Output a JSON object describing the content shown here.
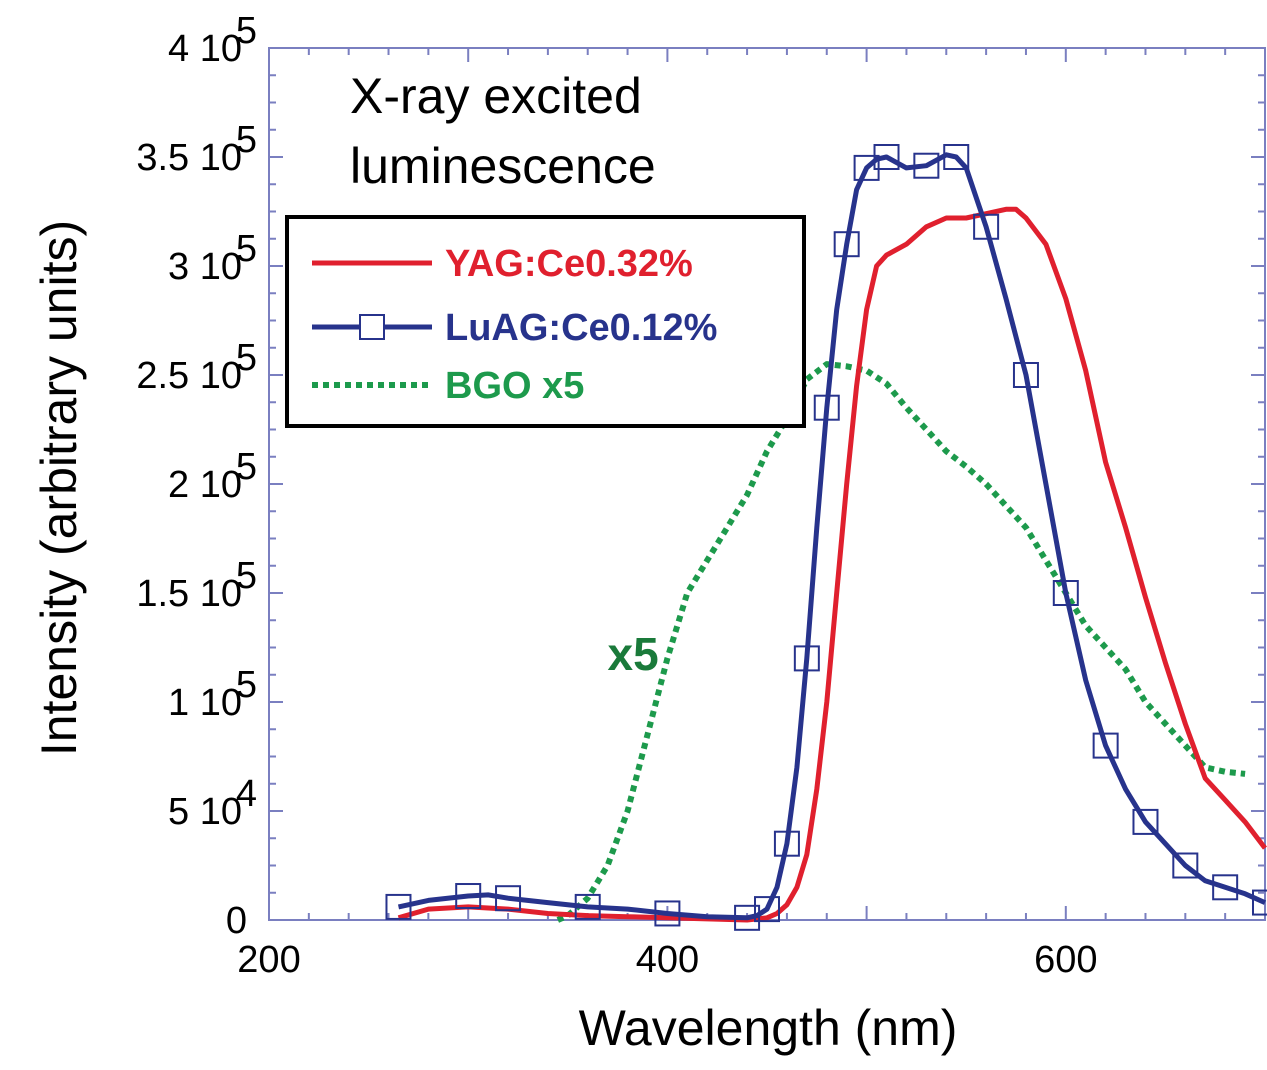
{
  "chart_data": {
    "type": "line",
    "title": [
      "X-ray excited",
      "luminescence"
    ],
    "xlabel": "Wavelength (nm)",
    "ylabel": "Intensity (arbitrary units)",
    "xlim": [
      200,
      700
    ],
    "ylim": [
      0,
      400000
    ],
    "xticks": [
      200,
      400,
      600
    ],
    "yticks": [
      {
        "value": 0,
        "base": "0",
        "exp": ""
      },
      {
        "value": 50000,
        "base": "5 10",
        "exp": "4"
      },
      {
        "value": 100000,
        "base": "1 10",
        "exp": "5"
      },
      {
        "value": 150000,
        "base": "1.5 10",
        "exp": "5"
      },
      {
        "value": 200000,
        "base": "2 10",
        "exp": "5"
      },
      {
        "value": 250000,
        "base": "2.5 10",
        "exp": "5"
      },
      {
        "value": 300000,
        "base": "3 10",
        "exp": "5"
      },
      {
        "value": 350000,
        "base": "3.5 10",
        "exp": "5"
      },
      {
        "value": 400000,
        "base": "4 10",
        "exp": "5"
      }
    ],
    "grid": false,
    "legend_position": "top-left",
    "annotation": {
      "text": "x5",
      "x": 380,
      "y": 110000,
      "color": "#1a7a3a"
    },
    "series": [
      {
        "name": "YAG:Ce0.32%",
        "color": "#e0202e",
        "style": "solid",
        "marker": "none",
        "x": [
          265,
          280,
          300,
          320,
          340,
          360,
          380,
          400,
          420,
          440,
          450,
          455,
          460,
          465,
          470,
          475,
          480,
          485,
          490,
          495,
          500,
          505,
          510,
          520,
          530,
          540,
          550,
          560,
          570,
          575,
          580,
          590,
          600,
          610,
          620,
          630,
          640,
          650,
          660,
          670,
          680,
          690,
          700
        ],
        "y": [
          1000,
          5000,
          6000,
          5000,
          3000,
          2000,
          1500,
          1000,
          500,
          0,
          1000,
          3000,
          7000,
          15000,
          30000,
          60000,
          100000,
          150000,
          200000,
          245000,
          280000,
          300000,
          305000,
          310000,
          318000,
          322000,
          322000,
          324000,
          326000,
          326000,
          322000,
          310000,
          285000,
          252000,
          210000,
          180000,
          148000,
          118000,
          90000,
          65000,
          55000,
          45000,
          33000
        ]
      },
      {
        "name": "LuAG:Ce0.12%",
        "color": "#27338c",
        "style": "solid",
        "marker": "square",
        "x": [
          265,
          280,
          300,
          310,
          320,
          340,
          360,
          380,
          400,
          420,
          440,
          445,
          450,
          455,
          460,
          465,
          470,
          475,
          480,
          485,
          490,
          495,
          500,
          505,
          510,
          520,
          530,
          540,
          545,
          550,
          560,
          570,
          580,
          590,
          600,
          610,
          620,
          630,
          640,
          650,
          660,
          670,
          680,
          690,
          700
        ],
        "y": [
          6000,
          9000,
          11000,
          11500,
          10000,
          8000,
          6000,
          5000,
          3000,
          1500,
          1000,
          2000,
          5000,
          15000,
          35000,
          70000,
          120000,
          180000,
          235000,
          280000,
          310000,
          335000,
          345000,
          349000,
          350000,
          345000,
          346000,
          351000,
          350000,
          345000,
          318000,
          285000,
          250000,
          200000,
          150000,
          110000,
          80000,
          60000,
          45000,
          35000,
          25000,
          18000,
          15000,
          12000,
          8000
        ]
      },
      {
        "name": "BGO x5",
        "color": "#1d9a4c",
        "style": "dashed",
        "marker": "none",
        "x": [
          345,
          350,
          360,
          370,
          380,
          390,
          400,
          410,
          420,
          430,
          440,
          450,
          460,
          470,
          480,
          490,
          500,
          510,
          520,
          530,
          540,
          550,
          560,
          570,
          580,
          590,
          600,
          610,
          620,
          630,
          640,
          650,
          660,
          670,
          680,
          690
        ],
        "y": [
          0,
          2000,
          10000,
          25000,
          50000,
          85000,
          120000,
          150000,
          165000,
          180000,
          195000,
          215000,
          230000,
          248000,
          255000,
          254000,
          252000,
          246000,
          235000,
          225000,
          215000,
          208000,
          200000,
          190000,
          180000,
          165000,
          150000,
          135000,
          125000,
          115000,
          100000,
          90000,
          80000,
          70000,
          68000,
          67000
        ]
      }
    ]
  }
}
